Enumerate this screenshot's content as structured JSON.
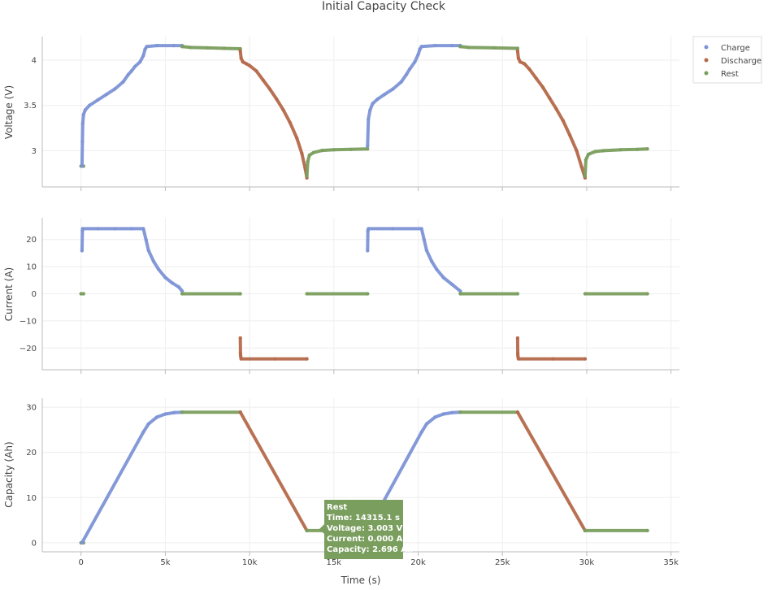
{
  "chart_data": {
    "type": "scatter",
    "title": "Initial Capacity Check",
    "xlabel": "Time (s)",
    "xlim": [
      -2300,
      35500
    ],
    "xticks": [
      0,
      5000,
      10000,
      15000,
      20000,
      25000,
      30000,
      35000
    ],
    "xtick_labels": [
      "0",
      "5k",
      "10k",
      "15k",
      "20k",
      "25k",
      "30k",
      "35k"
    ],
    "grid": true,
    "legend_position": "top-right",
    "colors": {
      "Charge": "#7d93d6",
      "Discharge": "#b5694a",
      "Rest": "#7a9e5e"
    },
    "legend": [
      "Charge",
      "Discharge",
      "Rest"
    ],
    "panels": [
      {
        "name": "voltage",
        "ylabel": "Voltage (V)",
        "ylim": [
          2.6,
          4.26
        ],
        "yticks": [
          3,
          3.5,
          4
        ],
        "ytick_labels": [
          "3",
          "3.5",
          "4"
        ],
        "series": [
          {
            "name": "Rest",
            "points": [
              [
                0,
                2.83
              ],
              [
                150,
                2.83
              ]
            ]
          },
          {
            "name": "Charge",
            "points": [
              [
                60,
                2.83
              ],
              [
                80,
                3.1
              ],
              [
                100,
                3.3
              ],
              [
                150,
                3.4
              ],
              [
                250,
                3.45
              ],
              [
                500,
                3.5
              ],
              [
                1000,
                3.56
              ],
              [
                1500,
                3.62
              ],
              [
                2000,
                3.68
              ],
              [
                2500,
                3.76
              ],
              [
                2800,
                3.84
              ],
              [
                3000,
                3.88
              ],
              [
                3200,
                3.93
              ],
              [
                3500,
                3.98
              ],
              [
                3700,
                4.05
              ],
              [
                3800,
                4.12
              ],
              [
                3900,
                4.15
              ],
              [
                4500,
                4.16
              ],
              [
                5500,
                4.16
              ],
              [
                6000,
                4.16
              ]
            ]
          },
          {
            "name": "Rest",
            "points": [
              [
                6000,
                4.15
              ],
              [
                6500,
                4.14
              ],
              [
                7500,
                4.135
              ],
              [
                8500,
                4.13
              ],
              [
                9450,
                4.125
              ]
            ]
          },
          {
            "name": "Discharge",
            "points": [
              [
                9450,
                4.1
              ],
              [
                9500,
                4.02
              ],
              [
                9600,
                3.98
              ],
              [
                9800,
                3.96
              ],
              [
                10000,
                3.94
              ],
              [
                10400,
                3.88
              ],
              [
                10800,
                3.78
              ],
              [
                11200,
                3.68
              ],
              [
                11600,
                3.57
              ],
              [
                12000,
                3.45
              ],
              [
                12400,
                3.31
              ],
              [
                12800,
                3.14
              ],
              [
                13100,
                2.97
              ],
              [
                13300,
                2.8
              ],
              [
                13400,
                2.7
              ]
            ]
          },
          {
            "name": "Rest",
            "points": [
              [
                13400,
                2.72
              ],
              [
                13450,
                2.88
              ],
              [
                13550,
                2.95
              ],
              [
                13800,
                2.98
              ],
              [
                14315,
                3.003
              ],
              [
                15000,
                3.01
              ],
              [
                16000,
                3.015
              ],
              [
                17000,
                3.02
              ]
            ]
          },
          {
            "name": "Charge",
            "points": [
              [
                17000,
                3.05
              ],
              [
                17050,
                3.35
              ],
              [
                17150,
                3.45
              ],
              [
                17300,
                3.52
              ],
              [
                17600,
                3.57
              ],
              [
                18000,
                3.62
              ],
              [
                18500,
                3.68
              ],
              [
                19000,
                3.76
              ],
              [
                19300,
                3.84
              ],
              [
                19500,
                3.9
              ],
              [
                19800,
                3.98
              ],
              [
                20000,
                4.06
              ],
              [
                20100,
                4.12
              ],
              [
                20200,
                4.15
              ],
              [
                21000,
                4.16
              ],
              [
                22000,
                4.16
              ],
              [
                22500,
                4.16
              ]
            ]
          },
          {
            "name": "Rest",
            "points": [
              [
                22500,
                4.15
              ],
              [
                23000,
                4.14
              ],
              [
                24500,
                4.135
              ],
              [
                25900,
                4.13
              ]
            ]
          },
          {
            "name": "Discharge",
            "points": [
              [
                25900,
                4.1
              ],
              [
                25950,
                4.02
              ],
              [
                26050,
                3.98
              ],
              [
                26300,
                3.96
              ],
              [
                26600,
                3.9
              ],
              [
                27000,
                3.8
              ],
              [
                27400,
                3.7
              ],
              [
                27800,
                3.58
              ],
              [
                28200,
                3.46
              ],
              [
                28600,
                3.33
              ],
              [
                29000,
                3.17
              ],
              [
                29400,
                3.0
              ],
              [
                29700,
                2.82
              ],
              [
                29900,
                2.7
              ]
            ]
          },
          {
            "name": "Rest",
            "points": [
              [
                29900,
                2.72
              ],
              [
                29950,
                2.9
              ],
              [
                30100,
                2.96
              ],
              [
                30500,
                2.99
              ],
              [
                31000,
                3.0
              ],
              [
                32000,
                3.01
              ],
              [
                33000,
                3.015
              ],
              [
                33600,
                3.02
              ]
            ]
          }
        ]
      },
      {
        "name": "current",
        "ylabel": "Current (A)",
        "ylim": [
          -28,
          28
        ],
        "yticks": [
          -20,
          -10,
          0,
          10,
          20
        ],
        "ytick_labels": [
          "−20",
          "−10",
          "0",
          "10",
          "20"
        ],
        "series": [
          {
            "name": "Rest",
            "points": [
              [
                0,
                0
              ],
              [
                150,
                0
              ]
            ]
          },
          {
            "name": "Charge",
            "points": [
              [
                60,
                15.9
              ],
              [
                80,
                23.2
              ],
              [
                90,
                24
              ],
              [
                1000,
                24
              ],
              [
                2000,
                24
              ],
              [
                3000,
                24
              ],
              [
                3700,
                24
              ],
              [
                3850,
                20
              ],
              [
                4000,
                16
              ],
              [
                4300,
                12
              ],
              [
                4600,
                9
              ],
              [
                5000,
                6
              ],
              [
                5400,
                4
              ],
              [
                5800,
                2.5
              ],
              [
                6000,
                1
              ]
            ]
          },
          {
            "name": "Rest",
            "points": [
              [
                6000,
                0
              ],
              [
                9450,
                0
              ]
            ]
          },
          {
            "name": "Discharge",
            "points": [
              [
                9450,
                -16.3
              ],
              [
                9460,
                -22
              ],
              [
                9470,
                -23
              ],
              [
                9500,
                -24
              ],
              [
                11500,
                -24
              ],
              [
                13400,
                -24
              ]
            ]
          },
          {
            "name": "Rest",
            "points": [
              [
                13400,
                0
              ],
              [
                17000,
                0
              ]
            ]
          },
          {
            "name": "Charge",
            "points": [
              [
                17000,
                15.9
              ],
              [
                17020,
                23.2
              ],
              [
                17050,
                24
              ],
              [
                18500,
                24
              ],
              [
                20200,
                24
              ],
              [
                20350,
                20
              ],
              [
                20500,
                16
              ],
              [
                20800,
                12
              ],
              [
                21100,
                9
              ],
              [
                21500,
                6
              ],
              [
                22000,
                3.5
              ],
              [
                22500,
                1
              ]
            ]
          },
          {
            "name": "Rest",
            "points": [
              [
                22500,
                0
              ],
              [
                25900,
                0
              ]
            ]
          },
          {
            "name": "Discharge",
            "points": [
              [
                25900,
                -16.3
              ],
              [
                25910,
                -22
              ],
              [
                25920,
                -23
              ],
              [
                25950,
                -24
              ],
              [
                28000,
                -24
              ],
              [
                29900,
                -24
              ]
            ]
          },
          {
            "name": "Rest",
            "points": [
              [
                29900,
                0
              ],
              [
                33600,
                0
              ]
            ]
          }
        ]
      },
      {
        "name": "capacity",
        "ylabel": "Capacity (Ah)",
        "ylim": [
          -2,
          32
        ],
        "yticks": [
          0,
          10,
          20,
          30
        ],
        "ytick_labels": [
          "0",
          "10",
          "20",
          "30"
        ],
        "series": [
          {
            "name": "Rest",
            "points": [
              [
                0,
                0
              ],
              [
                150,
                0
              ]
            ]
          },
          {
            "name": "Charge",
            "points": [
              [
                60,
                0
              ],
              [
                3700,
                24.5
              ],
              [
                4000,
                26.3
              ],
              [
                4500,
                27.8
              ],
              [
                5000,
                28.5
              ],
              [
                5500,
                28.8
              ],
              [
                6000,
                28.9
              ]
            ]
          },
          {
            "name": "Rest",
            "points": [
              [
                6000,
                28.9
              ],
              [
                9450,
                28.9
              ]
            ]
          },
          {
            "name": "Discharge",
            "points": [
              [
                9450,
                28.9
              ],
              [
                13400,
                2.7
              ]
            ]
          },
          {
            "name": "Rest",
            "points": [
              [
                13400,
                2.7
              ],
              [
                14315,
                2.696
              ],
              [
                17000,
                2.7
              ]
            ]
          },
          {
            "name": "Charge",
            "points": [
              [
                17000,
                2.7
              ],
              [
                20200,
                24.5
              ],
              [
                20500,
                26.3
              ],
              [
                21000,
                27.8
              ],
              [
                21500,
                28.5
              ],
              [
                22000,
                28.8
              ],
              [
                22500,
                28.9
              ]
            ]
          },
          {
            "name": "Rest",
            "points": [
              [
                22500,
                28.9
              ],
              [
                25900,
                28.9
              ]
            ]
          },
          {
            "name": "Discharge",
            "points": [
              [
                25900,
                28.9
              ],
              [
                29900,
                2.7
              ]
            ]
          },
          {
            "name": "Rest",
            "points": [
              [
                29900,
                2.7
              ],
              [
                33600,
                2.7
              ]
            ]
          }
        ]
      }
    ],
    "tooltip": {
      "header": "Rest",
      "lines": [
        "Time: 14315.1 s",
        "Voltage: 3.003 V",
        "Current: 0.000 A",
        "Capacity: 2.696 Ah"
      ],
      "time": 14315.1,
      "capacity": 2.696
    }
  }
}
